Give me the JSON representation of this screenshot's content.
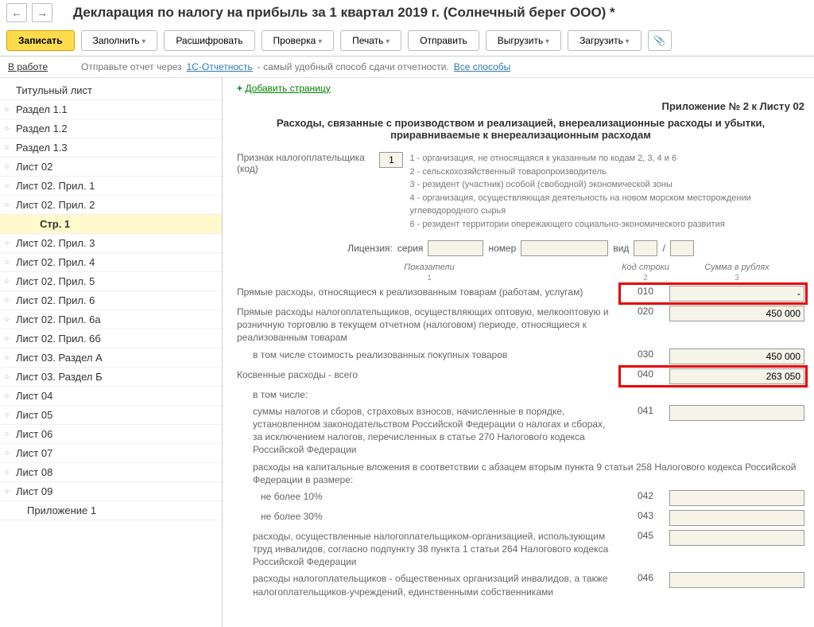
{
  "nav": {
    "back": "←",
    "fwd": "→"
  },
  "title": "Декларация по налогу на прибыль за 1 квартал 2019 г. (Солнечный берег ООО) *",
  "toolbar": {
    "write": "Записать",
    "fill": "Заполнить",
    "decode": "Расшифровать",
    "check": "Проверка",
    "print": "Печать",
    "send": "Отправить",
    "export": "Выгрузить",
    "load": "Загрузить"
  },
  "status": {
    "label": "В работе",
    "text": "Отправьте отчет через",
    "link1": "1С-Отчетность",
    "text2": "- самый удобный способ сдачи отчетности.",
    "link2": "Все способы"
  },
  "tree": [
    {
      "label": "Титульный лист",
      "cls": "tree-item noicon"
    },
    {
      "label": "Раздел 1.1",
      "cls": "tree-item"
    },
    {
      "label": "Раздел 1.2",
      "cls": "tree-item"
    },
    {
      "label": "Раздел 1.3",
      "cls": "tree-item"
    },
    {
      "label": "Лист 02",
      "cls": "tree-item"
    },
    {
      "label": "Лист 02. Прил. 1",
      "cls": "tree-item"
    },
    {
      "label": "Лист 02. Прил. 2",
      "cls": "tree-item"
    },
    {
      "label": "Стр. 1",
      "cls": "tree-item tree-subsub noicon"
    },
    {
      "label": "Лист 02. Прил. 3",
      "cls": "tree-item"
    },
    {
      "label": "Лист 02. Прил. 4",
      "cls": "tree-item"
    },
    {
      "label": "Лист 02. Прил. 5",
      "cls": "tree-item"
    },
    {
      "label": "Лист 02. Прил. 6",
      "cls": "tree-item"
    },
    {
      "label": "Лист 02. Прил. 6а",
      "cls": "tree-item"
    },
    {
      "label": "Лист 02. Прил. 6б",
      "cls": "tree-item"
    },
    {
      "label": "Лист 03. Раздел А",
      "cls": "tree-item"
    },
    {
      "label": "Лист 03. Раздел Б",
      "cls": "tree-item"
    },
    {
      "label": "Лист 04",
      "cls": "tree-item"
    },
    {
      "label": "Лист 05",
      "cls": "tree-item"
    },
    {
      "label": "Лист 06",
      "cls": "tree-item"
    },
    {
      "label": "Лист 07",
      "cls": "tree-item"
    },
    {
      "label": "Лист 08",
      "cls": "tree-item"
    },
    {
      "label": "Лист 09",
      "cls": "tree-item"
    },
    {
      "label": "Приложение 1",
      "cls": "tree-item tree-sub noicon"
    }
  ],
  "content": {
    "add_page": "Добавить страницу",
    "attach": "Приложение № 2 к Листу 02",
    "section_title": "Расходы, связанные с производством и реализацией, внереализационные расходы и убытки, приравниваемые к внереализационным расходам",
    "tp_label": "Признак налогоплательщика (код)",
    "tp_code": "1",
    "tp_lines": [
      "1 - организация, не относящаяся к указанным по кодам 2, 3, 4 и 6",
      "2 - сельскохозяйственный товаропроизводитель",
      "3 - резидент (участник) особой (свободной) экономической зоны",
      "4 - организация, осуществляющая деятельность на новом морском месторождении углеводородного сырья",
      "6 - резидент территории опережающего социально-экономического развития"
    ],
    "license": {
      "label": "Лицензия:",
      "series": "серия",
      "number": "номер",
      "type": "вид",
      "sep": "/"
    },
    "columns": {
      "c1": "Показатели",
      "c2": "Код строки",
      "c3": "Сумма в рублях",
      "s1": "1",
      "s2": "2",
      "s3": "3"
    },
    "rows": [
      {
        "label": "Прямые расходы, относящиеся к реализованным товарам (работам, услугам)",
        "code": "010",
        "val": "-",
        "hl": true,
        "indent": ""
      },
      {
        "label": "Прямые расходы налогоплательщиков, осуществляющих оптовую, мелкооптовую и розничную торговлю в текущем отчетном (налоговом) периоде, относящиеся к реализованным товарам",
        "code": "020",
        "val": "450 000",
        "hl": false,
        "indent": ""
      },
      {
        "label": "в том числе стоимость реализованных покупных товаров",
        "code": "030",
        "val": "450 000",
        "hl": false,
        "indent": "indent1"
      },
      {
        "label": "Косвенные расходы - всего",
        "code": "040",
        "val": "263 050",
        "hl": true,
        "indent": ""
      },
      {
        "label": "в том числе:",
        "code": "",
        "val": "",
        "hl": false,
        "indent": "indent1",
        "novalue": true
      },
      {
        "label": "суммы налогов и сборов, страховых взносов, начисленные в порядке, установленном законодательством Российской Федерации о налогах и сборах, за исключением налогов, перечисленных в статье 270 Налогового кодекса Российской Федерации",
        "code": "041",
        "val": "",
        "hl": false,
        "indent": "indent1"
      },
      {
        "label": "расходы на капитальные вложения в соответствии с абзацем вторым пункта 9 статьи 258 Налогового кодекса Российской Федерации в размере:",
        "code": "",
        "val": "",
        "hl": false,
        "indent": "indent1",
        "novalue": true
      },
      {
        "label": "не более 10%",
        "code": "042",
        "val": "",
        "hl": false,
        "indent": "indent2"
      },
      {
        "label": "не более 30%",
        "code": "043",
        "val": "",
        "hl": false,
        "indent": "indent2"
      },
      {
        "label": "расходы, осуществленные налогоплательщиком-организацией, использующим труд инвалидов, согласно подпункту 38 пункта 1 статьи 264 Налогового кодекса Российской Федерации",
        "code": "045",
        "val": "",
        "hl": false,
        "indent": "indent1"
      },
      {
        "label": "расходы налогоплательщиков - общественных организаций инвалидов, а также налогоплательщиков-учреждений, единственными собственниками",
        "code": "046",
        "val": "",
        "hl": false,
        "indent": "indent1"
      }
    ]
  }
}
